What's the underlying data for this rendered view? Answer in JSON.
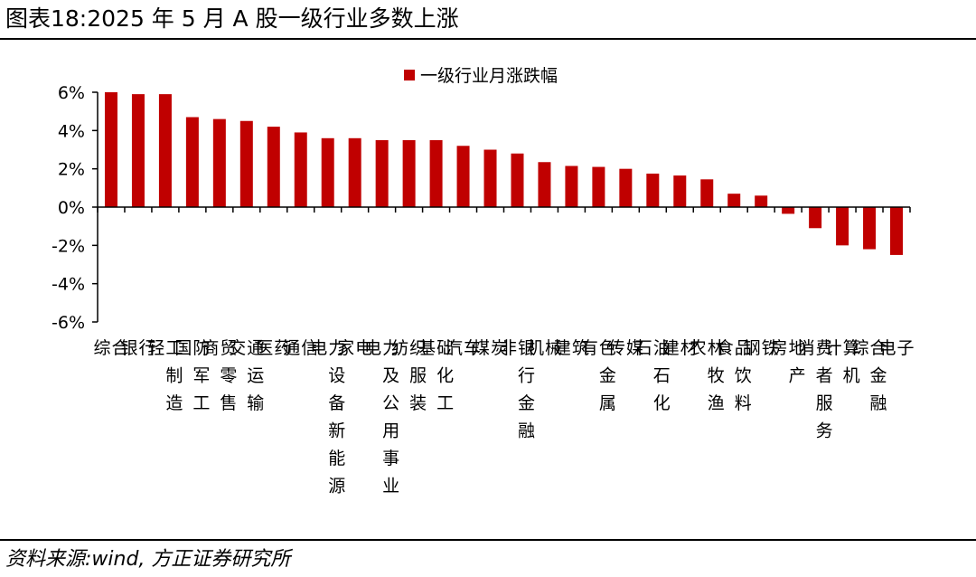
{
  "header": {
    "title": "图表18:2025 年 5 月 A 股一级行业多数上涨"
  },
  "footer": {
    "source": "资料来源:wind, 方正证券研究所"
  },
  "chart_data": {
    "type": "bar",
    "title": "",
    "xlabel": "",
    "ylabel": "",
    "ylim": [
      -6,
      6
    ],
    "yticks": [
      "6%",
      "4%",
      "2%",
      "0%",
      "-2%",
      "-4%",
      "-6%"
    ],
    "yunit": "%",
    "legend": {
      "position": "top-center"
    },
    "bar_color": "#c00000",
    "grid": false,
    "categories": [
      "综合",
      "银行",
      "轻工制造",
      "国防军工",
      "商贸零售",
      "交通运输",
      "医药",
      "通信",
      "电力设备新能源",
      "家电",
      "电力及公用事业",
      "纺织服装",
      "基础化工",
      "汽车",
      "煤炭",
      "非银行金融",
      "机械",
      "建筑",
      "有色金属",
      "传媒",
      "石油石化",
      "建材",
      "农林牧渔",
      "食品饮料",
      "钢铁",
      "房地产",
      "消费者服务",
      "计算机",
      "综合金融",
      "电子"
    ],
    "series": [
      {
        "name": "一级行业月涨跌幅",
        "values": [
          6.0,
          5.9,
          5.9,
          4.7,
          4.6,
          4.5,
          4.2,
          3.9,
          3.6,
          3.6,
          3.5,
          3.5,
          3.5,
          3.2,
          3.0,
          2.8,
          2.35,
          2.15,
          2.1,
          2.0,
          1.75,
          1.65,
          1.45,
          0.7,
          0.6,
          -0.35,
          -1.1,
          -2.0,
          -2.2,
          -2.5
        ]
      }
    ]
  }
}
